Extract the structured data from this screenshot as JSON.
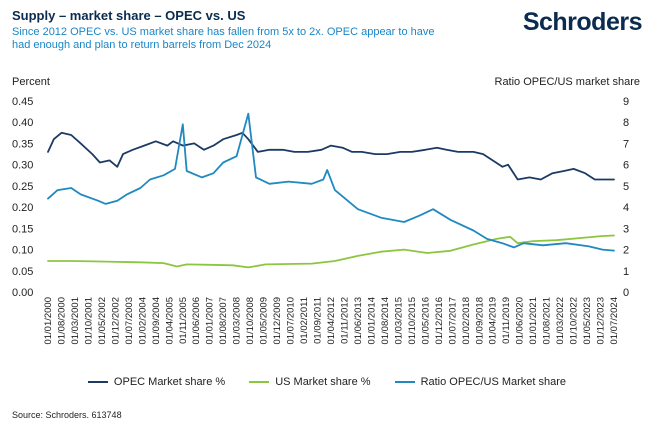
{
  "header": {
    "title": "Supply – market share – OPEC vs. US",
    "subtitle": "Since 2012 OPEC vs. US market share has fallen from 5x to 2x. OPEC appear to have had enough and plan to return barrels from Dec 2024",
    "logo": "Schroders"
  },
  "footer": {
    "source": "Source: Schroders. 613748"
  },
  "colors": {
    "opec": "#1b3a66",
    "us": "#8cc63f",
    "ratio": "#1f89c0",
    "brand": "#0b2b4f",
    "subtitle": "#1a86c7"
  },
  "chart_data": {
    "type": "line",
    "title": "Supply – market share – OPEC vs. US",
    "ylabel": "Percent",
    "y2label": "Ratio OPEC/US market share",
    "ylim": [
      0,
      0.45
    ],
    "y2lim": [
      0,
      9
    ],
    "yticks": [
      "0.00",
      "0.05",
      "0.10",
      "0.15",
      "0.20",
      "0.25",
      "0.30",
      "0.35",
      "0.40",
      "0.45"
    ],
    "y2ticks": [
      "0",
      "1",
      "2",
      "3",
      "4",
      "5",
      "6",
      "7",
      "8",
      "9"
    ],
    "xlim": [
      "2000-01-01",
      "2024-07-01"
    ],
    "xticks": [
      "01/01/2000",
      "01/08/2000",
      "01/03/2001",
      "01/10/2001",
      "01/05/2002",
      "01/12/2002",
      "01/07/2003",
      "01/02/2004",
      "01/09/2004",
      "01/04/2005",
      "01/11/2005",
      "01/06/2006",
      "01/01/2007",
      "01/08/2007",
      "01/03/2008",
      "01/10/2008",
      "01/05/2009",
      "01/12/2009",
      "01/07/2010",
      "01/02/2011",
      "01/09/2011",
      "01/04/2012",
      "01/11/2012",
      "01/06/2013",
      "01/01/2014",
      "01/08/2014",
      "01/03/2015",
      "01/10/2015",
      "01/05/2016",
      "01/12/2016",
      "01/07/2017",
      "01/02/2018",
      "01/09/2018",
      "01/04/2019",
      "01/11/2019",
      "01/06/2020",
      "01/01/2021",
      "01/08/2021",
      "01/03/2022",
      "01/10/2022",
      "01/05/2023",
      "01/12/2023",
      "01/07/2024"
    ],
    "grid": false,
    "legend_position": "bottom",
    "series": [
      {
        "name": "OPEC Market share %",
        "axis": "left",
        "color": "#1b3a66",
        "points": [
          [
            "2000-01-01",
            0.33
          ],
          [
            "2000-04-01",
            0.36
          ],
          [
            "2000-08-01",
            0.375
          ],
          [
            "2001-01-01",
            0.37
          ],
          [
            "2001-06-01",
            0.35
          ],
          [
            "2001-12-01",
            0.325
          ],
          [
            "2002-04-01",
            0.305
          ],
          [
            "2002-09-01",
            0.31
          ],
          [
            "2003-01-01",
            0.295
          ],
          [
            "2003-04-01",
            0.325
          ],
          [
            "2003-09-01",
            0.335
          ],
          [
            "2004-03-01",
            0.345
          ],
          [
            "2004-09-01",
            0.355
          ],
          [
            "2005-03-01",
            0.345
          ],
          [
            "2005-06-01",
            0.355
          ],
          [
            "2005-11-01",
            0.345
          ],
          [
            "2006-05-01",
            0.35
          ],
          [
            "2006-10-01",
            0.335
          ],
          [
            "2007-03-01",
            0.345
          ],
          [
            "2007-08-01",
            0.36
          ],
          [
            "2008-03-01",
            0.37
          ],
          [
            "2008-06-01",
            0.375
          ],
          [
            "2008-09-01",
            0.36
          ],
          [
            "2009-02-01",
            0.33
          ],
          [
            "2009-08-01",
            0.335
          ],
          [
            "2010-03-01",
            0.335
          ],
          [
            "2010-09-01",
            0.33
          ],
          [
            "2011-04-01",
            0.33
          ],
          [
            "2011-11-01",
            0.335
          ],
          [
            "2012-04-01",
            0.345
          ],
          [
            "2012-10-01",
            0.34
          ],
          [
            "2013-03-01",
            0.33
          ],
          [
            "2013-08-01",
            0.33
          ],
          [
            "2014-03-01",
            0.325
          ],
          [
            "2014-09-01",
            0.325
          ],
          [
            "2015-04-01",
            0.33
          ],
          [
            "2015-10-01",
            0.33
          ],
          [
            "2016-05-01",
            0.335
          ],
          [
            "2016-11-01",
            0.34
          ],
          [
            "2017-04-01",
            0.335
          ],
          [
            "2017-10-01",
            0.33
          ],
          [
            "2018-06-01",
            0.33
          ],
          [
            "2018-11-01",
            0.325
          ],
          [
            "2019-04-01",
            0.31
          ],
          [
            "2019-09-01",
            0.295
          ],
          [
            "2019-12-01",
            0.3
          ],
          [
            "2020-05-01",
            0.265
          ],
          [
            "2020-11-01",
            0.27
          ],
          [
            "2021-05-01",
            0.265
          ],
          [
            "2021-11-01",
            0.28
          ],
          [
            "2022-05-01",
            0.285
          ],
          [
            "2022-10-01",
            0.29
          ],
          [
            "2023-04-01",
            0.28
          ],
          [
            "2023-09-01",
            0.265
          ],
          [
            "2024-01-01",
            0.265
          ],
          [
            "2024-07-01",
            0.265
          ]
        ]
      },
      {
        "name": "US Market share %",
        "axis": "left",
        "color": "#8cc63f",
        "points": [
          [
            "2000-01-01",
            0.073
          ],
          [
            "2001-01-01",
            0.073
          ],
          [
            "2002-01-01",
            0.072
          ],
          [
            "2003-01-01",
            0.071
          ],
          [
            "2004-01-01",
            0.07
          ],
          [
            "2005-01-01",
            0.068
          ],
          [
            "2005-08-01",
            0.06
          ],
          [
            "2006-01-01",
            0.065
          ],
          [
            "2007-01-01",
            0.064
          ],
          [
            "2008-01-01",
            0.063
          ],
          [
            "2008-09-01",
            0.058
          ],
          [
            "2009-06-01",
            0.065
          ],
          [
            "2010-06-01",
            0.066
          ],
          [
            "2011-06-01",
            0.067
          ],
          [
            "2012-06-01",
            0.073
          ],
          [
            "2013-06-01",
            0.085
          ],
          [
            "2014-06-01",
            0.095
          ],
          [
            "2015-06-01",
            0.1
          ],
          [
            "2016-06-01",
            0.092
          ],
          [
            "2017-06-01",
            0.097
          ],
          [
            "2018-06-01",
            0.112
          ],
          [
            "2019-06-01",
            0.125
          ],
          [
            "2020-01-01",
            0.13
          ],
          [
            "2020-05-01",
            0.115
          ],
          [
            "2021-01-01",
            0.12
          ],
          [
            "2022-01-01",
            0.122
          ],
          [
            "2023-01-01",
            0.127
          ],
          [
            "2024-01-01",
            0.132
          ],
          [
            "2024-07-01",
            0.133
          ]
        ]
      },
      {
        "name": "Ratio OPEC/US Market share",
        "axis": "right",
        "color": "#1f89c0",
        "points": [
          [
            "2000-01-01",
            4.4
          ],
          [
            "2000-06-01",
            4.8
          ],
          [
            "2001-01-01",
            4.9
          ],
          [
            "2001-06-01",
            4.6
          ],
          [
            "2002-03-01",
            4.3
          ],
          [
            "2002-07-01",
            4.15
          ],
          [
            "2003-01-01",
            4.3
          ],
          [
            "2003-06-01",
            4.6
          ],
          [
            "2004-01-01",
            4.9
          ],
          [
            "2004-06-01",
            5.3
          ],
          [
            "2005-01-01",
            5.5
          ],
          [
            "2005-07-01",
            5.8
          ],
          [
            "2005-11-01",
            7.9
          ],
          [
            "2006-01-01",
            5.7
          ],
          [
            "2006-09-01",
            5.4
          ],
          [
            "2007-03-01",
            5.6
          ],
          [
            "2007-08-01",
            6.1
          ],
          [
            "2008-03-01",
            6.4
          ],
          [
            "2008-09-01",
            8.4
          ],
          [
            "2009-01-01",
            5.4
          ],
          [
            "2009-08-01",
            5.1
          ],
          [
            "2010-06-01",
            5.2
          ],
          [
            "2011-06-01",
            5.1
          ],
          [
            "2011-12-01",
            5.3
          ],
          [
            "2012-02-01",
            5.75
          ],
          [
            "2012-06-01",
            4.8
          ],
          [
            "2013-06-01",
            3.9
          ],
          [
            "2014-06-01",
            3.5
          ],
          [
            "2015-06-01",
            3.3
          ],
          [
            "2016-02-01",
            3.6
          ],
          [
            "2016-09-01",
            3.9
          ],
          [
            "2017-06-01",
            3.4
          ],
          [
            "2018-06-01",
            2.9
          ],
          [
            "2019-01-01",
            2.5
          ],
          [
            "2019-09-01",
            2.3
          ],
          [
            "2020-03-01",
            2.1
          ],
          [
            "2020-08-01",
            2.3
          ],
          [
            "2021-06-01",
            2.2
          ],
          [
            "2022-06-01",
            2.3
          ],
          [
            "2023-06-01",
            2.15
          ],
          [
            "2024-01-01",
            2.0
          ],
          [
            "2024-07-01",
            1.95
          ]
        ]
      }
    ]
  }
}
